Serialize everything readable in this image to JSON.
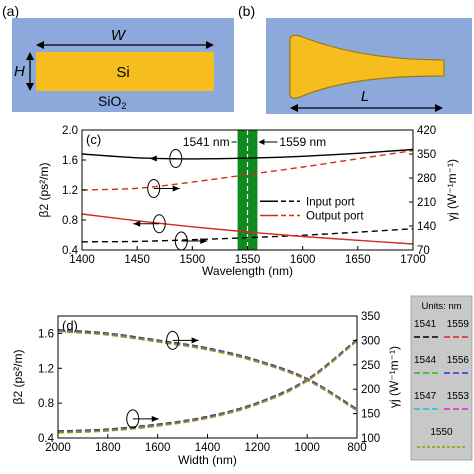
{
  "panel_a": {
    "label": "(a)",
    "width_label": "W",
    "height_label": "H",
    "core_label": "Si",
    "clad_label_base": "SiO",
    "clad_label_sub": "2",
    "colors": {
      "cladding": "#8DA9DB",
      "core": "#F5BE1E"
    }
  },
  "panel_b": {
    "label": "(b)",
    "length_label": "L",
    "colors": {
      "cladding": "#8DA9DB",
      "taper": "#F5BE1E"
    }
  },
  "chart_data": [
    {
      "panel_label": "(c)",
      "type": "line",
      "xlabel": "Wavelength (nm)",
      "ylabel": "β2 (ps²/m)",
      "y2label": "γj (W⁻¹m⁻¹)",
      "xlim": [
        1400,
        1700
      ],
      "ylim": [
        0.4,
        2.0
      ],
      "y2lim": [
        70,
        420
      ],
      "xticks": [
        "1400",
        "1450",
        "1500",
        "1550",
        "1600",
        "1650",
        "1700"
      ],
      "yticks": [
        "0.4",
        "0.8",
        "1.2",
        "1.6",
        "2.0"
      ],
      "y2ticks": [
        "70",
        "140",
        "210",
        "280",
        "350",
        "420"
      ],
      "annotations": [
        "1541 nm",
        "1559 nm"
      ],
      "highlight_band": {
        "from": 1541,
        "to": 1559,
        "color": "#0F8A1E"
      },
      "legend": {
        "placement": "center-right",
        "entries": [
          "Input port",
          "Output port"
        ]
      },
      "x": [
        1400,
        1450,
        1500,
        1550,
        1600,
        1650,
        1700
      ],
      "series": [
        {
          "name": "Input port",
          "axis": "left",
          "style": "solid",
          "color": "#000000",
          "values": [
            1.68,
            1.63,
            1.615,
            1.625,
            1.65,
            1.69,
            1.74
          ]
        },
        {
          "name": "Input port",
          "axis": "right",
          "style": "dashed",
          "color": "#000000",
          "values": [
            94,
            95,
            100,
            106,
            113,
            122,
            132
          ]
        },
        {
          "name": "Output port",
          "axis": "left",
          "style": "solid",
          "color": "#D52B1E",
          "values": [
            0.88,
            0.79,
            0.71,
            0.64,
            0.58,
            0.53,
            0.48
          ]
        },
        {
          "name": "Output port",
          "axis": "right",
          "style": "dashed",
          "color": "#D52B1E",
          "values": [
            245,
            250,
            268,
            290,
            312,
            336,
            360
          ]
        }
      ]
    },
    {
      "panel_label": "(d)",
      "type": "line",
      "xlabel": "Width (nm)",
      "ylabel": "β2 (ps²/m)",
      "y2label": "γj (W⁻¹m⁻¹)",
      "xlim": [
        2000,
        800
      ],
      "ylim": [
        0.4,
        1.8
      ],
      "y2lim": [
        100,
        350
      ],
      "xticks": [
        "2000",
        "1800",
        "1600",
        "1400",
        "1200",
        "1000",
        "800"
      ],
      "yticks": [
        "0.4",
        "0.8",
        "1.2",
        "1.6"
      ],
      "y2ticks": [
        "100",
        "150",
        "200",
        "250",
        "300",
        "350"
      ],
      "x": [
        2000,
        1800,
        1600,
        1400,
        1200,
        1000,
        800
      ],
      "beta_values": [
        1.63,
        1.59,
        1.51,
        1.42,
        1.28,
        1.07,
        0.72
      ],
      "gamma_values": [
        112,
        116,
        126,
        142,
        170,
        218,
        300
      ],
      "legend": {
        "title": "Units: nm",
        "entries": [
          {
            "a": "1541",
            "b": "1559",
            "color_a": "#000000",
            "color_b": "#E02020"
          },
          {
            "a": "1544",
            "b": "1556",
            "color_a": "#22BB22",
            "color_b": "#2233DD"
          },
          {
            "a": "1547",
            "b": "1553",
            "color_a": "#10C8D0",
            "color_b": "#E020E0"
          },
          {
            "a": "1550",
            "b": "",
            "color_a": "#999900",
            "color_b": ""
          }
        ]
      }
    }
  ]
}
